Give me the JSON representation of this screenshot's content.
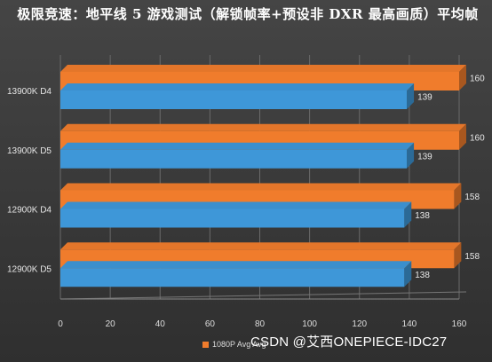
{
  "chart_data": {
    "type": "bar",
    "orientation": "horizontal",
    "title": "极限竞速：地平线 5 游戏测试（解锁帧率+预设非 DXR 最高画质）平均帧",
    "categories": [
      "13900K D4",
      "13900K D5",
      "12900K D4",
      "12900K D5"
    ],
    "series": [
      {
        "name": "1080P Avg",
        "color": "#f07c2c",
        "values": [
          160,
          160,
          158,
          158
        ]
      },
      {
        "name": "Avg",
        "color": "#3e97d8",
        "values": [
          139,
          139,
          138,
          138
        ]
      }
    ],
    "xlim": [
      0,
      160
    ],
    "xticks": [
      "0",
      "20",
      "40",
      "60",
      "80",
      "100",
      "120",
      "140",
      "160"
    ],
    "grid": true,
    "legend_position": "bottom"
  },
  "legend": {
    "entries": [
      "1080P Avg",
      "Avg"
    ],
    "text": "1080P Avg Avg"
  },
  "watermark": "CSDN @艾西ONEPIECE-IDC27"
}
